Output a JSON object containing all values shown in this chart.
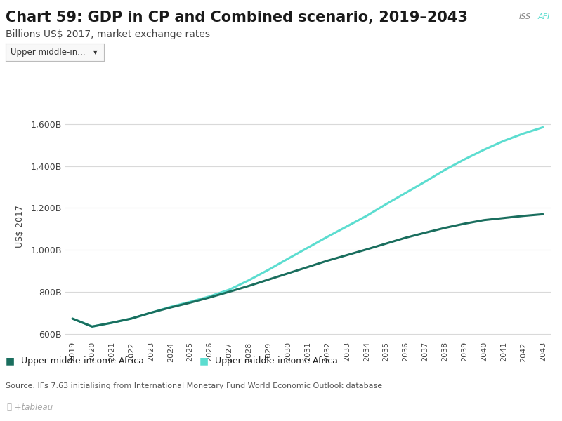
{
  "title": "Chart 59: GDP in CP and Combined scenario, 2019–2043",
  "subtitle": "Billions US$ 2017, market exchange rates",
  "ylabel": "US$ 2017",
  "years": [
    2019,
    2020,
    2021,
    2022,
    2023,
    2024,
    2025,
    2026,
    2027,
    2028,
    2029,
    2030,
    2031,
    2032,
    2033,
    2034,
    2035,
    2036,
    2037,
    2038,
    2039,
    2040,
    2041,
    2042,
    2043
  ],
  "cp_values": [
    672,
    634,
    652,
    672,
    700,
    725,
    748,
    773,
    800,
    828,
    858,
    888,
    918,
    948,
    975,
    1002,
    1030,
    1058,
    1082,
    1105,
    1125,
    1142,
    1152,
    1162,
    1170
  ],
  "combined_values": [
    672,
    634,
    652,
    672,
    700,
    728,
    752,
    778,
    810,
    855,
    905,
    958,
    1010,
    1062,
    1112,
    1162,
    1218,
    1272,
    1326,
    1382,
    1432,
    1478,
    1520,
    1555,
    1585
  ],
  "cp_color": "#1a6e5e",
  "combined_color": "#5cddd0",
  "ylim_min": 575,
  "ylim_max": 1650,
  "yticks": [
    600,
    800,
    1000,
    1200,
    1400,
    1600
  ],
  "ytick_labels": [
    "600B",
    "800B",
    "1,000B",
    "1,200B",
    "1,400B",
    "1,600B"
  ],
  "bg_color": "#ffffff",
  "plot_bg": "#ffffff",
  "grid_color": "#d9d9d9",
  "legend1": "Upper middle-income Africa...",
  "legend2": "Upper middle-income Africa...",
  "source_text": "Source: IFs 7.63 initialising from International Monetary Fund World Economic Outlook database",
  "dropdown_text": "Upper middle-in...   ▾",
  "title_fontsize": 15,
  "subtitle_fontsize": 10,
  "line_width": 2.2
}
